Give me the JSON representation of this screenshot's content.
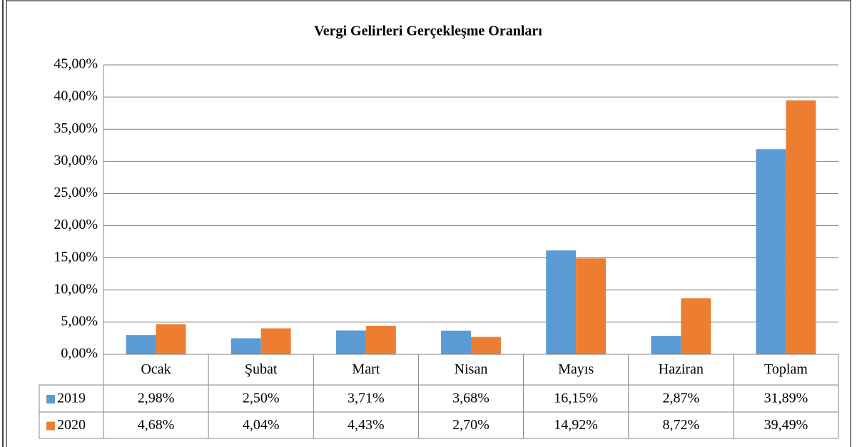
{
  "chart_data": {
    "type": "bar",
    "title": "Vergi Gelirleri Gerçekleşme Oranları",
    "categories": [
      "Ocak",
      "Şubat",
      "Mart",
      "Nisan",
      "Mayıs",
      "Haziran",
      "Toplam"
    ],
    "series": [
      {
        "name": "2019",
        "color": "#5b9bd5",
        "values": [
          2.98,
          2.5,
          3.71,
          3.68,
          16.15,
          2.87,
          31.89
        ],
        "value_labels": [
          "2,98%",
          "2,50%",
          "3,71%",
          "3,68%",
          "16,15%",
          "2,87%",
          "31,89%"
        ]
      },
      {
        "name": "2020",
        "color": "#ed7d31",
        "values": [
          4.68,
          4.04,
          4.43,
          2.7,
          14.92,
          8.72,
          39.49
        ],
        "value_labels": [
          "4,68%",
          "4,04%",
          "4,43%",
          "2,70%",
          "14,92%",
          "8,72%",
          "39,49%"
        ]
      }
    ],
    "ylim": [
      0,
      45
    ],
    "yticks": [
      {
        "value": 0,
        "label": "0,00%"
      },
      {
        "value": 5,
        "label": "5,00%"
      },
      {
        "value": 10,
        "label": "10,00%"
      },
      {
        "value": 15,
        "label": "15,00%"
      },
      {
        "value": 20,
        "label": "20,00%"
      },
      {
        "value": 25,
        "label": "25,00%"
      },
      {
        "value": 30,
        "label": "30,00%"
      },
      {
        "value": 35,
        "label": "35,00%"
      },
      {
        "value": 40,
        "label": "40,00%"
      },
      {
        "value": 45,
        "label": "45,00%"
      }
    ],
    "grid": true
  }
}
